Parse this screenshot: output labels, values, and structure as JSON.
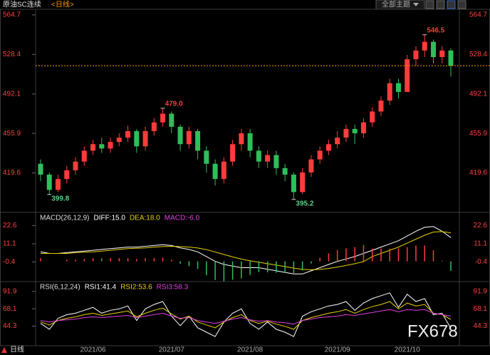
{
  "header": {
    "title": "原油SC连续",
    "period": "<日线>",
    "theme_button": "全部主题"
  },
  "footer": {
    "period": "日线"
  },
  "watermark": "FX678",
  "chart_data": [
    {
      "type": "candlestick",
      "categories": [
        null,
        null,
        null,
        null,
        null,
        null,
        "2021/06",
        null,
        null,
        null,
        null,
        null,
        null,
        null,
        null,
        "2021/07",
        null,
        null,
        null,
        null,
        null,
        null,
        null,
        null,
        "2021/08",
        null,
        null,
        null,
        null,
        null,
        null,
        null,
        null,
        null,
        "2021/09",
        null,
        null,
        null,
        null,
        null,
        null,
        null,
        "2021/10",
        null,
        null,
        null,
        null,
        null
      ],
      "open": [
        428,
        418,
        404,
        414,
        422,
        430,
        440,
        446,
        442,
        448,
        452,
        458,
        444,
        458,
        466,
        474,
        462,
        446,
        458,
        440,
        428,
        414,
        430,
        446,
        456,
        440,
        430,
        436,
        424,
        418,
        402,
        420,
        432,
        440,
        446,
        452,
        460,
        456,
        466,
        476,
        486,
        502,
        494,
        524,
        532,
        540,
        526,
        532
      ],
      "high": [
        432,
        420,
        418,
        426,
        434,
        444,
        450,
        452,
        452,
        456,
        463,
        460,
        462,
        470,
        479,
        476,
        464,
        462,
        460,
        444,
        432,
        434,
        450,
        460,
        460,
        444,
        440,
        440,
        428,
        420,
        424,
        436,
        444,
        450,
        458,
        464,
        464,
        470,
        480,
        490,
        506,
        506,
        528,
        536,
        546.5,
        542,
        536,
        534
      ],
      "low": [
        412,
        399.8,
        402,
        410,
        418,
        426,
        436,
        438,
        438,
        444,
        448,
        438,
        440,
        454,
        462,
        456,
        440,
        442,
        432,
        420,
        408,
        410,
        426,
        440,
        434,
        424,
        424,
        418,
        412,
        395.2,
        400,
        416,
        428,
        436,
        442,
        448,
        446,
        452,
        462,
        472,
        482,
        488,
        494,
        518,
        526,
        520,
        520,
        508
      ],
      "close": [
        418,
        404,
        414,
        422,
        430,
        440,
        446,
        442,
        448,
        452,
        458,
        444,
        458,
        466,
        474,
        462,
        446,
        458,
        440,
        428,
        414,
        430,
        446,
        456,
        440,
        430,
        436,
        424,
        418,
        402,
        420,
        432,
        440,
        446,
        452,
        460,
        456,
        466,
        476,
        486,
        502,
        494,
        524,
        532,
        540,
        526,
        532,
        518
      ],
      "up_color": "#ff3b3b",
      "down_color": "#2fbf5a",
      "ylim": [
        383.3,
        569.9
      ],
      "yticks": [
        564.7,
        528.4,
        492.1,
        455.9,
        419.6
      ],
      "last_price": 518.1,
      "last_price_color": "#ff9900",
      "annotations": [
        {
          "label": "479.0",
          "value": 479,
          "color": "#ff3b3b"
        },
        {
          "label": "546.5",
          "value": 546.5,
          "color": "#ff3b3b"
        },
        {
          "label": "399.8",
          "value": 399.8,
          "color": "#5fd08a"
        },
        {
          "label": "395.2",
          "value": 395.2,
          "color": "#5fd08a"
        }
      ]
    },
    {
      "type": "macd",
      "title": "MACD(26,12,9)",
      "series": [
        {
          "name": "DIFF:15.0",
          "color": "#ffffff",
          "values": [
            6,
            5,
            5,
            5.5,
            6,
            6.5,
            7,
            7.5,
            8,
            8.5,
            9,
            9,
            9.5,
            10,
            10.5,
            10,
            8.5,
            7.5,
            6,
            3,
            0,
            -2,
            -3,
            -4,
            -4,
            -4,
            -5,
            -6,
            -7,
            -8,
            -8,
            -6,
            -4,
            -2,
            0,
            1.5,
            3,
            5,
            7,
            9,
            11,
            13,
            16,
            19,
            21.5,
            22,
            19,
            15
          ]
        },
        {
          "name": "DEA:18.0",
          "color": "#e8d000",
          "values": [
            5,
            5,
            5,
            5,
            5.5,
            5.8,
            6,
            6.5,
            7,
            7.5,
            8,
            8.3,
            8.5,
            9,
            9.3,
            9.5,
            9.3,
            9,
            8.4,
            7.4,
            5.9,
            4.3,
            2.8,
            1.4,
            0.3,
            -0.6,
            -1.5,
            -2.4,
            -3.3,
            -4.3,
            -5.1,
            -5.3,
            -5.1,
            -4.5,
            -3.6,
            -2.6,
            -1.5,
            -0.2,
            3,
            5,
            7,
            9,
            11.5,
            14,
            16.5,
            18.5,
            18.8,
            18
          ]
        },
        {
          "name": "MACD:-6.0",
          "color": "#e040e0",
          "type": "histogram",
          "values": [
            2,
            0,
            0,
            1,
            1,
            1.4,
            2,
            2,
            2,
            2,
            2,
            1.4,
            2,
            2,
            2.4,
            1,
            -1.6,
            -3,
            -4.8,
            -8.8,
            -11.8,
            -12.6,
            -11.6,
            -10.8,
            -8.6,
            -6.8,
            -7,
            -7.2,
            -7.4,
            -7.4,
            -5.8,
            -1.4,
            2.2,
            5,
            7.2,
            8.2,
            9,
            10.4,
            8,
            8,
            8,
            8,
            9,
            10,
            10,
            7,
            0.4,
            -6
          ]
        }
      ],
      "ylim": [
        -12.8,
        30.9
      ],
      "yticks": [
        22.6,
        11.1,
        -0.4
      ]
    },
    {
      "type": "line",
      "title": "RSI(6,12,24)",
      "series": [
        {
          "name": "RSI1:41.4",
          "color": "#ffffff",
          "values": [
            48,
            40,
            55,
            60,
            62,
            66,
            70,
            62,
            66,
            68,
            72,
            52,
            68,
            74,
            78,
            58,
            45,
            58,
            42,
            36,
            30,
            50,
            62,
            68,
            48,
            40,
            50,
            40,
            36,
            30,
            58,
            64,
            68,
            72,
            74,
            78,
            66,
            76,
            82,
            86,
            90,
            70,
            88,
            78,
            82,
            60,
            62,
            41.4
          ]
        },
        {
          "name": "RSI2:53.6",
          "color": "#e8d000",
          "values": [
            50,
            46,
            52,
            55,
            57,
            60,
            62,
            59,
            61,
            63,
            65,
            57,
            62,
            66,
            69,
            61,
            54,
            58,
            50,
            46,
            42,
            50,
            56,
            60,
            52,
            48,
            51,
            47,
            44,
            40,
            52,
            56,
            59,
            62,
            64,
            67,
            62,
            67,
            71,
            74,
            78,
            68,
            76,
            72,
            74,
            62,
            60,
            53.6
          ]
        },
        {
          "name": "RSI3:58.3",
          "color": "#e040e0",
          "values": [
            52,
            50,
            52,
            53,
            54,
            56,
            57,
            56,
            57,
            58,
            59,
            56,
            58,
            60,
            62,
            58,
            55,
            56,
            52,
            50,
            48,
            51,
            54,
            56,
            53,
            51,
            52,
            50,
            49,
            47,
            52,
            54,
            56,
            57,
            58,
            60,
            59,
            61,
            63,
            65,
            67,
            64,
            67,
            66,
            67,
            62,
            60,
            58.3
          ]
        }
      ],
      "ylim": [
        17.4,
        105.4
      ],
      "yticks": [
        91.9,
        68.1,
        44.3
      ]
    }
  ]
}
